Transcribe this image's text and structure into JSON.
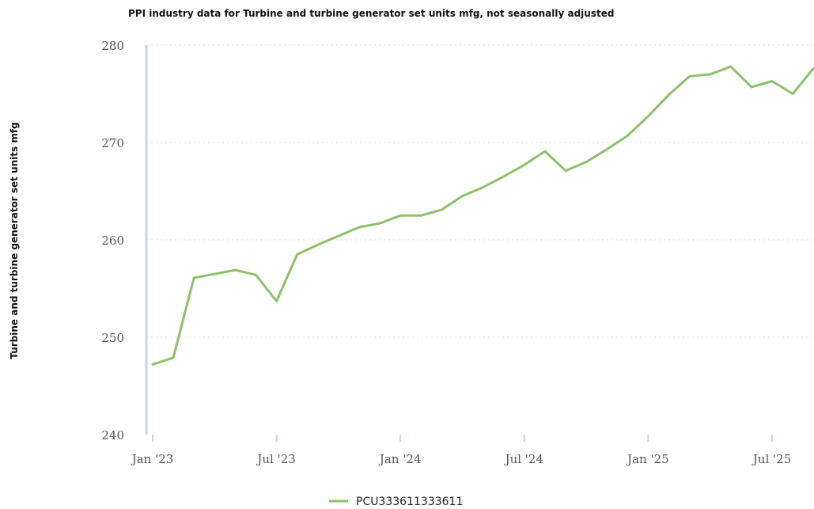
{
  "chart_data": {
    "type": "line",
    "title": "PPI industry data for Turbine and turbine generator set units mfg, not seasonally adjusted",
    "ylabel": "Turbine and turbine generator set units mfg",
    "xlabel": "",
    "ylim": [
      240,
      280
    ],
    "y_ticks": [
      "240",
      "250",
      "260",
      "270",
      "280"
    ],
    "x_ticks": [
      {
        "label": "Jan '23",
        "x": "2023-01"
      },
      {
        "label": "Jul '23",
        "x": "2023-07"
      },
      {
        "label": "Jan '24",
        "x": "2024-01"
      },
      {
        "label": "Jul '24",
        "x": "2024-07"
      },
      {
        "label": "Jan '25",
        "x": "2025-01"
      },
      {
        "label": "Jul '25",
        "x": "2025-07"
      }
    ],
    "grid": true,
    "legend_position": "bottom-center",
    "colors": {
      "series": "#8cc06a",
      "axis": "#c9d3e2",
      "grid": "#dddddd"
    },
    "x": [
      "2023-01",
      "2023-02",
      "2023-03",
      "2023-04",
      "2023-05",
      "2023-06",
      "2023-07",
      "2023-08",
      "2023-09",
      "2023-10",
      "2023-11",
      "2023-12",
      "2024-01",
      "2024-02",
      "2024-03",
      "2024-04",
      "2024-05",
      "2024-06",
      "2024-07",
      "2024-08",
      "2024-09",
      "2024-10",
      "2024-11",
      "2024-12",
      "2025-01",
      "2025-02",
      "2025-03",
      "2025-04",
      "2025-05",
      "2025-06",
      "2025-07",
      "2025-08",
      "2025-09"
    ],
    "series": [
      {
        "name": "PCU333611333611",
        "values": [
          247.2,
          247.9,
          256.1,
          256.5,
          256.9,
          256.4,
          253.7,
          258.5,
          259.5,
          260.4,
          261.3,
          261.7,
          262.5,
          262.5,
          263.1,
          264.5,
          265.4,
          266.5,
          267.7,
          269.1,
          267.1,
          268.0,
          269.3,
          270.7,
          272.7,
          274.9,
          276.8,
          277.0,
          277.8,
          275.7,
          276.3,
          275.0,
          277.6
        ]
      }
    ]
  }
}
